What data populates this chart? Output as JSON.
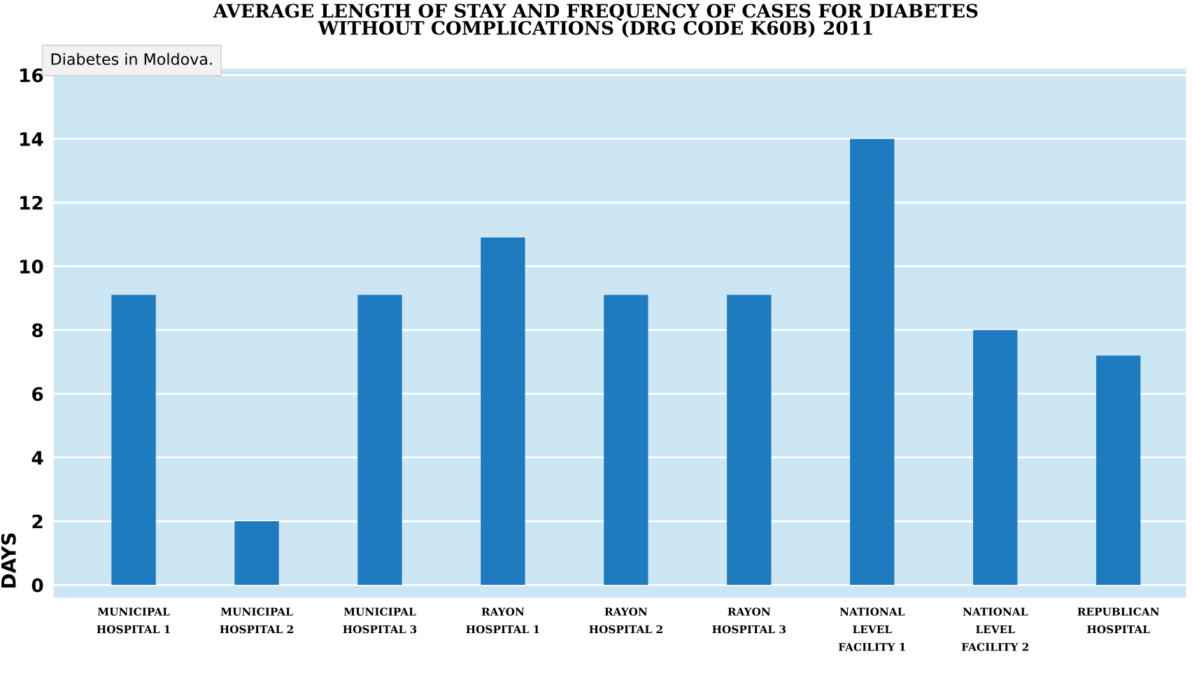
{
  "chart_data": {
    "type": "bar",
    "title": "AVERAGE LENGTH OF STAY AND FREQUENCY OF CASES FOR DIABETES\nWITHOUT COMPLICATIONS (DRG CODE K60B) 2011",
    "ylabel": "DAYS",
    "categories": [
      "MUNICIPAL\nHOSPITAL 1",
      "MUNICIPAL\nHOSPITAL 2",
      "MUNICIPAL\nHOSPITAL 3",
      "RAYON\nHOSPITAL 1",
      "RAYON\nHOSPITAL 2",
      "RAYON\nHOSPITAL 3",
      "NATIONAL\nLEVEL\nFACILITY 1",
      "NATIONAL\nLEVEL\nFACILITY 2",
      "REPUBLICAN\nHOSPITAL"
    ],
    "values": [
      9.1,
      2.0,
      9.1,
      10.9,
      9.1,
      9.1,
      14.0,
      8.0,
      7.2
    ],
    "color": "#1f7bbf",
    "ylim": [
      -0.4,
      16.2
    ],
    "yticks": [
      0,
      2,
      4,
      6,
      8,
      10,
      12,
      14,
      16
    ],
    "grid": "y",
    "annotations": [
      "Diabetes in Moldova."
    ]
  }
}
